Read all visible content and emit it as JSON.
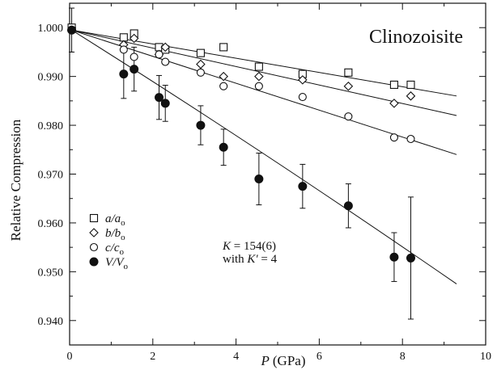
{
  "chart_data": {
    "type": "scatter",
    "title": "Clinozoisite",
    "xlabel_var": "P",
    "xlabel_unit": "(GPa)",
    "ylabel": "Relative Compression",
    "xlim": [
      0,
      10
    ],
    "ylim": [
      0.935,
      1.005
    ],
    "xticks": [
      0,
      2,
      4,
      6,
      8,
      10
    ],
    "yticks": [
      0.94,
      0.95,
      0.96,
      0.97,
      0.98,
      0.99,
      1.0
    ],
    "xtick_labels": [
      "0",
      "2",
      "4",
      "6",
      "8",
      "10"
    ],
    "ytick_labels": [
      "0.940",
      "0.950",
      "0.960",
      "0.970",
      "0.980",
      "0.990",
      "1.000"
    ],
    "grid": false,
    "legend_position": "lower-left",
    "series": [
      {
        "name": "a/a",
        "sub": "o",
        "marker": "square-open",
        "x": [
          0.05,
          1.3,
          1.55,
          2.15,
          2.3,
          3.15,
          3.7,
          4.55,
          5.6,
          6.7,
          7.8,
          8.2
        ],
        "y": [
          1.0,
          0.998,
          0.9988,
          0.996,
          0.9955,
          0.9948,
          0.996,
          0.992,
          0.9905,
          0.9908,
          0.9883,
          0.9883
        ],
        "fit": {
          "x0": 0.05,
          "x1": 9.3,
          "y0": 0.9995,
          "y1": 0.986
        }
      },
      {
        "name": "b/b",
        "sub": "o",
        "marker": "diamond-open",
        "x": [
          0.05,
          1.3,
          1.55,
          2.15,
          2.3,
          3.15,
          3.7,
          4.55,
          5.6,
          6.7,
          7.8,
          8.2
        ],
        "y": [
          0.9995,
          0.9965,
          0.9978,
          0.9945,
          0.996,
          0.9925,
          0.99,
          0.99,
          0.9893,
          0.988,
          0.9845,
          0.986
        ],
        "fit": {
          "x0": 0.05,
          "x1": 9.3,
          "y0": 0.9995,
          "y1": 0.982
        }
      },
      {
        "name": "c/c",
        "sub": "o",
        "marker": "circle-open",
        "x": [
          0.05,
          1.3,
          1.55,
          2.15,
          2.3,
          3.15,
          3.7,
          4.55,
          5.6,
          6.7,
          7.8,
          8.2
        ],
        "y": [
          0.9995,
          0.9955,
          0.994,
          0.9945,
          0.993,
          0.9908,
          0.988,
          0.988,
          0.9858,
          0.9818,
          0.9775,
          0.9772
        ],
        "fit": {
          "x0": 0.05,
          "x1": 9.3,
          "y0": 0.9995,
          "y1": 0.974
        }
      },
      {
        "name": "V/V",
        "sub": "o",
        "marker": "circle-filled",
        "x": [
          0.05,
          1.3,
          1.55,
          2.15,
          2.3,
          3.15,
          3.7,
          4.55,
          5.6,
          6.7,
          7.8,
          8.2
        ],
        "y": [
          0.9995,
          0.9905,
          0.9915,
          0.9857,
          0.9845,
          0.98,
          0.9755,
          0.969,
          0.9675,
          0.9635,
          0.953,
          0.9528
        ],
        "yerr": [
          0.0045,
          0.005,
          0.0045,
          0.0045,
          0.0037,
          0.004,
          0.0037,
          0.0053,
          0.0045,
          0.0045,
          0.005,
          0.0125
        ],
        "fit": {
          "x0": 0.05,
          "x1": 9.3,
          "y0": 0.9995,
          "y1": 0.9475
        }
      }
    ],
    "annotation": {
      "line1_var": "K",
      "line1_rest": " = 154(6)",
      "line2_pre": "with ",
      "line2_var": "K'",
      "line2_rest": " = 4"
    }
  }
}
